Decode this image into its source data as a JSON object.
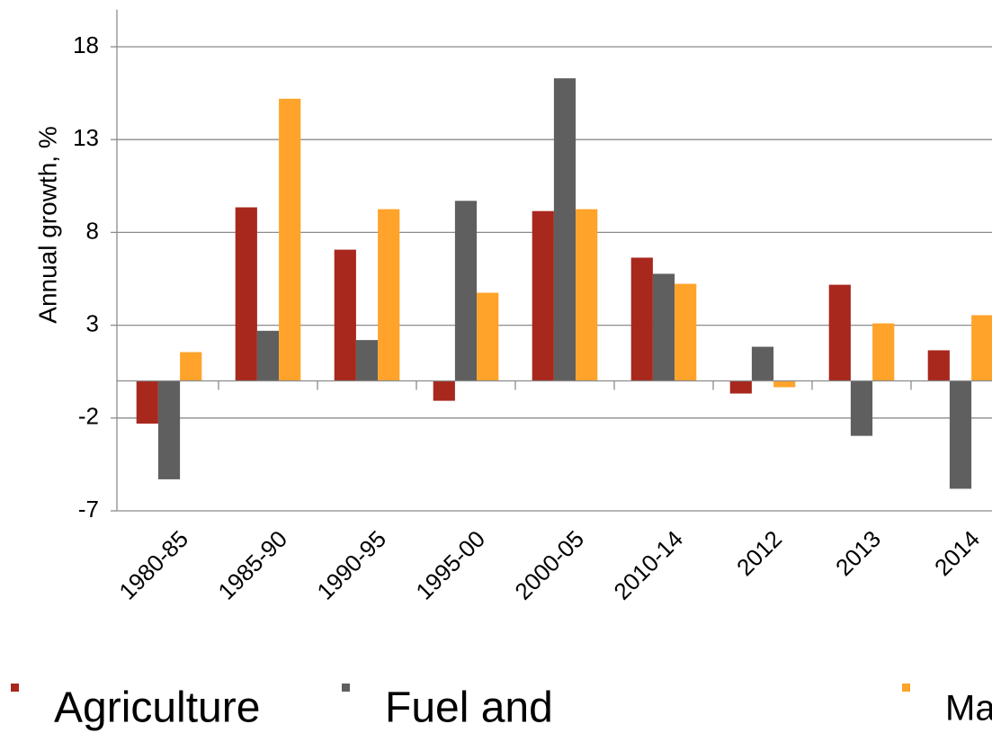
{
  "chart_data": {
    "type": "bar",
    "y_label": "Annual growth, %",
    "categories": [
      "1980-85",
      "1985-90",
      "1990-95",
      "1995-00",
      "2000-05",
      "2010-14",
      "2012",
      "2013",
      "2014"
    ],
    "series": [
      {
        "name": "Agriculture",
        "color": "#a8281e",
        "values": [
          -2.3,
          9.35,
          7.07,
          -1.07,
          9.15,
          6.64,
          -0.68,
          5.18,
          1.65
        ]
      },
      {
        "name": "Fuel and",
        "color": "#5f5f5f",
        "values": [
          -5.3,
          2.7,
          2.2,
          9.7,
          16.3,
          5.77,
          1.84,
          -2.96,
          -5.81
        ]
      },
      {
        "name": "Manufactur",
        "color": "#ffa32a",
        "values": [
          1.55,
          15.2,
          9.25,
          4.75,
          9.25,
          5.23,
          -0.34,
          3.1,
          3.54
        ]
      }
    ],
    "ylim": [
      -7,
      20
    ],
    "yticks": [
      -7,
      -2,
      3,
      8,
      13,
      18
    ],
    "grid": true
  }
}
